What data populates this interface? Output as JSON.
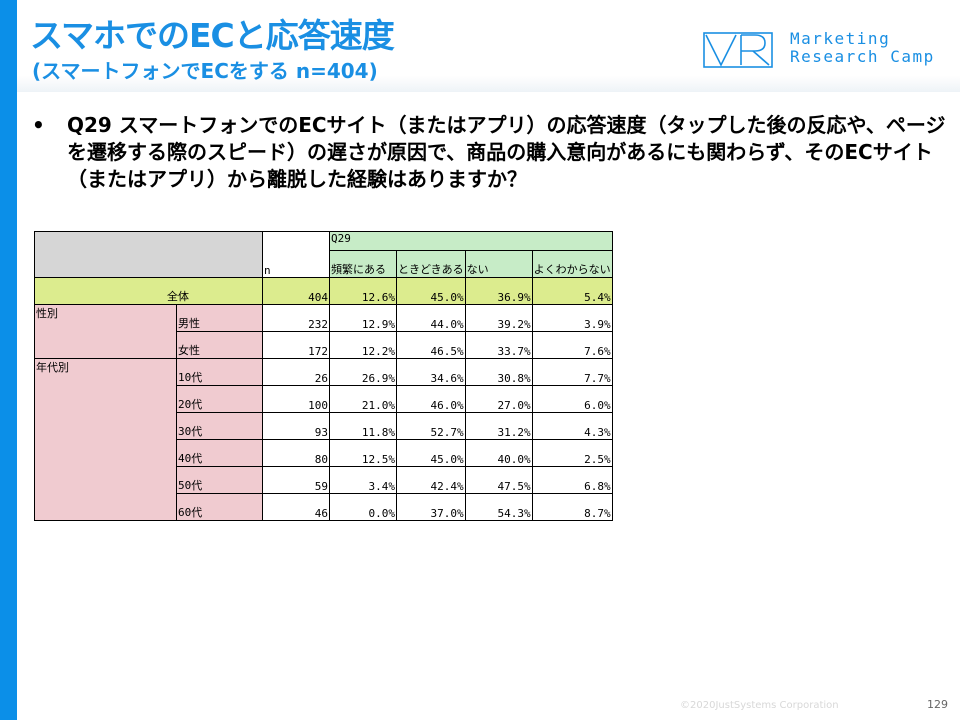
{
  "title": "スマホでのECと応答速度",
  "subtitle": "(スマートフォンでECをする n=404)",
  "logo": {
    "line1": "Marketing",
    "line2": "Research Camp"
  },
  "question": {
    "bullet": "•",
    "text": "Q29 スマートフォンでのECサイト（またはアプリ）の応答速度（タップした後の反応や、ページを遷移する際のスピード）の遅さが原因で、商品の購入意向があるにも関わらず、そのECサイト（またはアプリ）から離脱した経験はありますか？"
  },
  "table": {
    "question_label": "Q29",
    "n_label": "n",
    "columns": [
      "頻繁にある",
      "ときどきある",
      "ない",
      "よくわからない"
    ],
    "total": {
      "label": "全体",
      "n": "404",
      "values": [
        "12.6%",
        "45.0%",
        "36.9%",
        "5.4%"
      ]
    },
    "groups": [
      {
        "label": "性別",
        "rows": [
          {
            "label": "男性",
            "n": "232",
            "values": [
              "12.9%",
              "44.0%",
              "39.2%",
              "3.9%"
            ]
          },
          {
            "label": "女性",
            "n": "172",
            "values": [
              "12.2%",
              "46.5%",
              "33.7%",
              "7.6%"
            ]
          }
        ]
      },
      {
        "label": "年代別",
        "rows": [
          {
            "label": "10代",
            "n": "26",
            "values": [
              "26.9%",
              "34.6%",
              "30.8%",
              "7.7%"
            ]
          },
          {
            "label": "20代",
            "n": "100",
            "values": [
              "21.0%",
              "46.0%",
              "27.0%",
              "6.0%"
            ]
          },
          {
            "label": "30代",
            "n": "93",
            "values": [
              "11.8%",
              "52.7%",
              "31.2%",
              "4.3%"
            ]
          },
          {
            "label": "40代",
            "n": "80",
            "values": [
              "12.5%",
              "45.0%",
              "40.0%",
              "2.5%"
            ]
          },
          {
            "label": "50代",
            "n": "59",
            "values": [
              "3.4%",
              "42.4%",
              "47.5%",
              "6.8%"
            ]
          },
          {
            "label": "60代",
            "n": "46",
            "values": [
              "0.0%",
              "37.0%",
              "54.3%",
              "8.7%"
            ]
          }
        ]
      }
    ]
  },
  "footer": {
    "copyright": "©2020JustSystems Corporation",
    "page": "129"
  }
}
